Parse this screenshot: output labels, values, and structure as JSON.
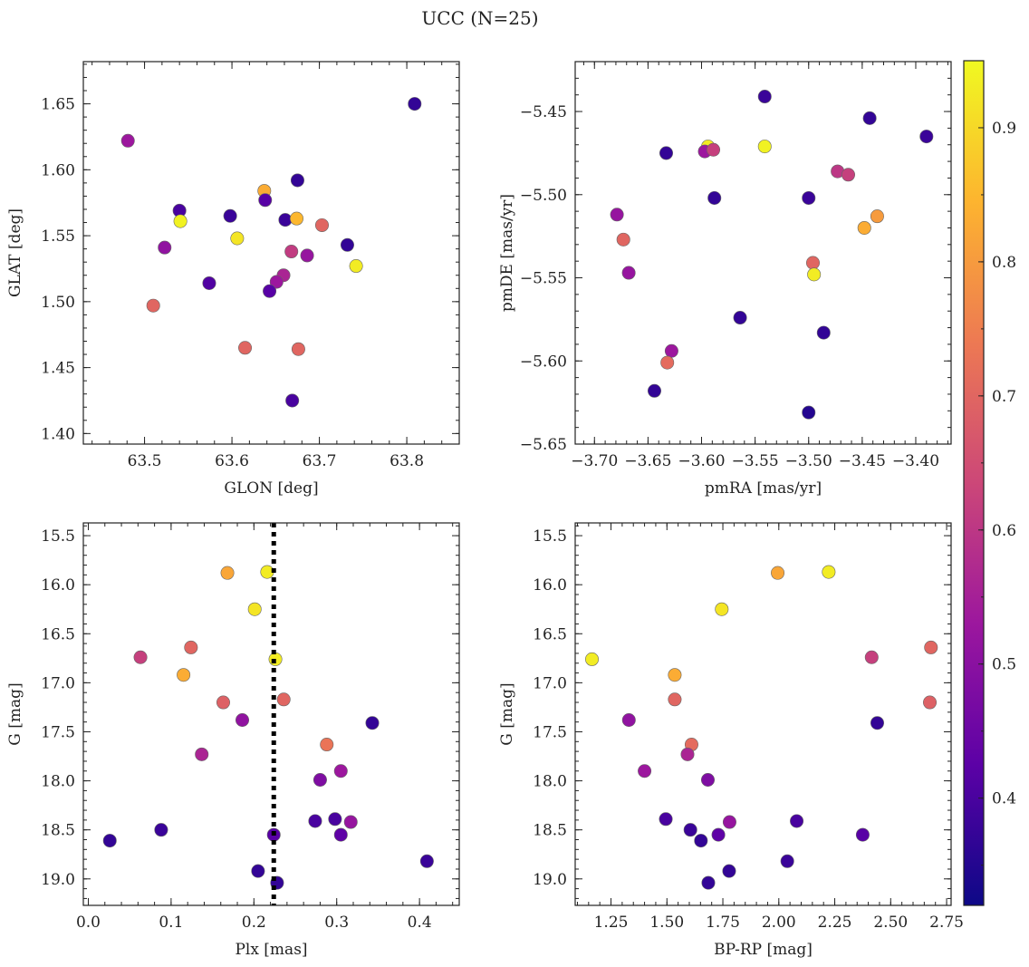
{
  "title": "UCC (N=25)",
  "colorbar": {
    "range": [
      0.32,
      0.95
    ],
    "ticks": [
      "0.4",
      "0.5",
      "0.6",
      "0.7",
      "0.8",
      "0.9"
    ],
    "stops": [
      "#0d0887",
      "#5c01a6",
      "#9c179e",
      "#cc4778",
      "#ed7953",
      "#fdb42f",
      "#f0f921"
    ]
  },
  "chart_data": [
    {
      "type": "scatter",
      "xlabel": "GLON [deg]",
      "ylabel": "GLAT [deg]",
      "xlim": [
        63.43,
        63.86
      ],
      "ylim": [
        1.392,
        1.682
      ],
      "xticks": [
        "63.5",
        "63.6",
        "63.7",
        "63.8"
      ],
      "yticks": [
        "1.40",
        "1.45",
        "1.50",
        "1.55",
        "1.60",
        "1.65"
      ],
      "x": [
        63.809,
        63.481,
        63.675,
        63.54,
        63.598,
        63.637,
        63.638,
        63.661,
        63.674,
        63.541,
        63.703,
        63.606,
        63.732,
        63.523,
        63.668,
        63.686,
        63.742,
        63.659,
        63.651,
        63.574,
        63.643,
        63.51,
        63.615,
        63.676,
        63.669
      ],
      "y": [
        1.65,
        1.622,
        1.592,
        1.569,
        1.565,
        1.584,
        1.577,
        1.562,
        1.563,
        1.561,
        1.558,
        1.548,
        1.543,
        1.541,
        1.538,
        1.535,
        1.527,
        1.52,
        1.515,
        1.514,
        1.508,
        1.497,
        1.465,
        1.464,
        1.425
      ],
      "c": [
        0.37,
        0.53,
        0.37,
        0.4,
        0.38,
        0.83,
        0.42,
        0.38,
        0.85,
        0.94,
        0.7,
        0.92,
        0.37,
        0.51,
        0.61,
        0.52,
        0.93,
        0.56,
        0.53,
        0.41,
        0.42,
        0.7,
        0.7,
        0.7,
        0.4
      ]
    },
    {
      "type": "scatter",
      "xlabel": "pmRA [mas/yr]",
      "ylabel": "pmDE [mas/yr]",
      "xlim": [
        -3.718,
        -3.367
      ],
      "ylim": [
        -5.65,
        -5.42
      ],
      "xticks": [
        "−3.70",
        "−3.65",
        "−3.60",
        "−3.55",
        "−3.50",
        "−3.45",
        "−3.40"
      ],
      "yticks": [
        "−5.65",
        "−5.60",
        "−5.55",
        "−5.50",
        "−5.45"
      ],
      "x": [
        -3.541,
        -3.443,
        -3.39,
        -3.633,
        -3.594,
        -3.597,
        -3.589,
        -3.541,
        -3.473,
        -3.463,
        -3.588,
        -3.5,
        -3.679,
        -3.436,
        -3.448,
        -3.673,
        -3.668,
        -3.496,
        -3.495,
        -3.564,
        -3.486,
        -3.628,
        -3.632,
        -3.644,
        -3.5
      ],
      "y": [
        -5.441,
        -5.454,
        -5.465,
        -5.475,
        -5.471,
        -5.474,
        -5.473,
        -5.471,
        -5.486,
        -5.488,
        -5.502,
        -5.502,
        -5.512,
        -5.513,
        -5.52,
        -5.527,
        -5.547,
        -5.541,
        -5.548,
        -5.574,
        -5.583,
        -5.594,
        -5.601,
        -5.618,
        -5.631
      ],
      "c": [
        0.38,
        0.37,
        0.38,
        0.37,
        0.93,
        0.53,
        0.62,
        0.94,
        0.6,
        0.62,
        0.37,
        0.38,
        0.52,
        0.8,
        0.83,
        0.7,
        0.52,
        0.7,
        0.93,
        0.37,
        0.37,
        0.53,
        0.71,
        0.37,
        0.35
      ]
    },
    {
      "type": "scatter",
      "xlabel": "Plx [mas]",
      "ylabel": "G [mag]",
      "xlim": [
        -0.006,
        0.448
      ],
      "ylim": [
        19.27,
        15.37
      ],
      "xticks": [
        "0.0",
        "0.1",
        "0.2",
        "0.3",
        "0.4"
      ],
      "yticks": [
        "15.5",
        "16.0",
        "16.5",
        "17.0",
        "17.5",
        "18.0",
        "18.5",
        "19.0"
      ],
      "vline": 0.224,
      "x": [
        0.168,
        0.216,
        0.201,
        0.124,
        0.063,
        0.226,
        0.115,
        0.236,
        0.163,
        0.186,
        0.343,
        0.137,
        0.288,
        0.305,
        0.28,
        0.274,
        0.298,
        0.317,
        0.088,
        0.305,
        0.224,
        0.026,
        0.409,
        0.205,
        0.228
      ],
      "y": [
        15.88,
        15.87,
        16.25,
        16.64,
        16.74,
        16.76,
        16.92,
        17.17,
        17.2,
        17.38,
        17.41,
        17.73,
        17.63,
        17.9,
        17.99,
        18.41,
        18.39,
        18.42,
        18.5,
        18.55,
        18.55,
        18.61,
        18.82,
        18.92,
        19.04
      ],
      "c": [
        0.82,
        0.93,
        0.92,
        0.7,
        0.62,
        0.93,
        0.83,
        0.7,
        0.69,
        0.51,
        0.37,
        0.56,
        0.73,
        0.53,
        0.48,
        0.4,
        0.4,
        0.52,
        0.38,
        0.43,
        0.42,
        0.37,
        0.38,
        0.37,
        0.37
      ]
    },
    {
      "type": "scatter",
      "xlabel": "BP-RP [mag]",
      "ylabel": "G [mag]",
      "xlim": [
        1.09,
        2.77
      ],
      "ylim": [
        19.27,
        15.37
      ],
      "xticks": [
        "1.25",
        "1.50",
        "1.75",
        "2.00",
        "2.25",
        "2.50",
        "2.75"
      ],
      "yticks": [
        "15.5",
        "16.0",
        "16.5",
        "17.0",
        "17.5",
        "18.0",
        "18.5",
        "19.0"
      ],
      "x": [
        1.995,
        2.223,
        1.745,
        1.165,
        2.68,
        2.415,
        1.535,
        1.535,
        2.675,
        1.33,
        2.44,
        1.61,
        1.592,
        1.4,
        1.683,
        2.08,
        1.495,
        1.78,
        1.605,
        1.73,
        2.375,
        1.652,
        2.038,
        1.778,
        1.685
      ],
      "y": [
        15.88,
        15.87,
        16.25,
        16.76,
        16.64,
        16.74,
        16.92,
        17.17,
        17.2,
        17.38,
        17.41,
        17.63,
        17.73,
        17.9,
        17.99,
        18.41,
        18.39,
        18.42,
        18.5,
        18.55,
        18.55,
        18.61,
        18.82,
        18.92,
        19.04
      ],
      "c": [
        0.82,
        0.93,
        0.92,
        0.93,
        0.7,
        0.62,
        0.83,
        0.7,
        0.69,
        0.51,
        0.37,
        0.71,
        0.56,
        0.53,
        0.48,
        0.4,
        0.4,
        0.52,
        0.38,
        0.43,
        0.42,
        0.37,
        0.38,
        0.37,
        0.37
      ]
    }
  ]
}
